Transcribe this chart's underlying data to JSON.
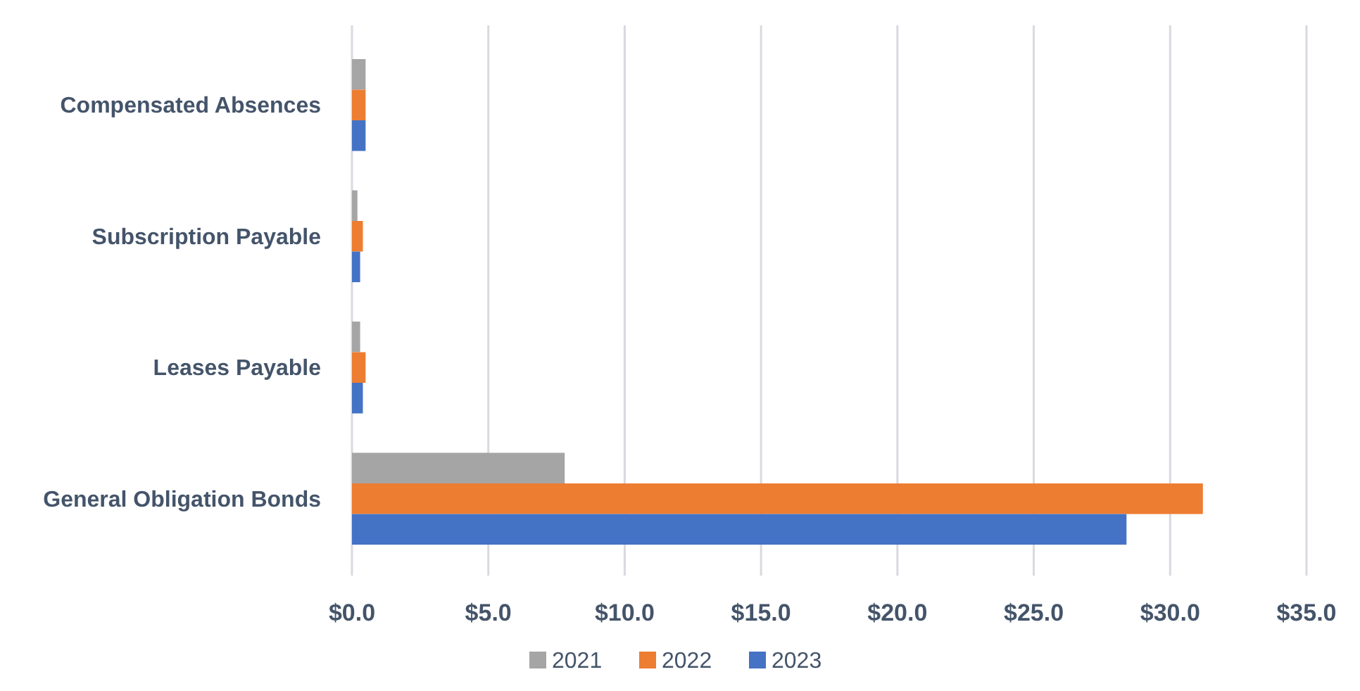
{
  "chart_data": {
    "type": "bar",
    "orientation": "horizontal",
    "categories": [
      "Compensated Absences",
      "Subscription Payable",
      "Leases Payable",
      "General Obligation Bonds"
    ],
    "series": [
      {
        "name": "2021",
        "color": "#a5a5a5",
        "values": [
          0.5,
          0.2,
          0.3,
          7.8
        ]
      },
      {
        "name": "2022",
        "color": "#ed7d31",
        "values": [
          0.5,
          0.4,
          0.5,
          31.2
        ]
      },
      {
        "name": "2023",
        "color": "#4472c4",
        "values": [
          0.5,
          0.3,
          0.4,
          28.4
        ]
      }
    ],
    "xlim": [
      0,
      35
    ],
    "xticks": [
      {
        "value": 0,
        "label": "$0.0"
      },
      {
        "value": 5,
        "label": "$5.0"
      },
      {
        "value": 10,
        "label": "$10.0"
      },
      {
        "value": 15,
        "label": "$15.0"
      },
      {
        "value": 20,
        "label": "$20.0"
      },
      {
        "value": 25,
        "label": "$25.0"
      },
      {
        "value": 30,
        "label": "$30.0"
      },
      {
        "value": 35,
        "label": "$35.0"
      }
    ],
    "grid": "x",
    "legend": "bottom"
  }
}
